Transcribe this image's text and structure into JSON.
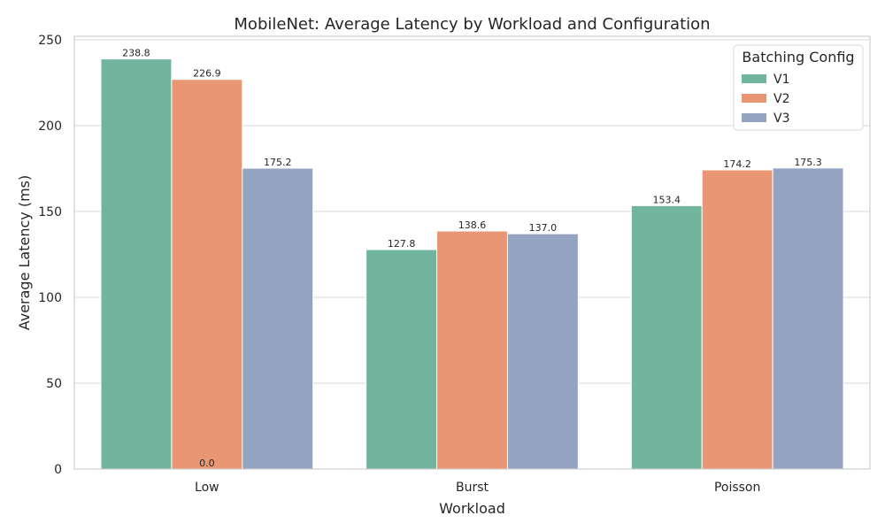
{
  "chart_data": {
    "type": "bar",
    "title": "MobileNet: Average Latency by Workload and Configuration",
    "xlabel": "Workload",
    "ylabel": "Average Latency (ms)",
    "categories": [
      "Low",
      "Burst",
      "Poisson"
    ],
    "series": [
      {
        "name": "V1",
        "values": [
          238.8,
          127.8,
          153.4
        ],
        "color": "#72b59f"
      },
      {
        "name": "V2",
        "values": [
          226.9,
          138.6,
          174.2
        ],
        "color": "#e89673"
      },
      {
        "name": "V3",
        "values": [
          175.2,
          137.0,
          175.3
        ],
        "color": "#95a3c3"
      }
    ],
    "extra_annotation": {
      "text": "0.0",
      "category": "Low",
      "value": 0
    },
    "ylim": [
      0,
      252
    ],
    "yticks": [
      0,
      50,
      100,
      150,
      200,
      250
    ],
    "grid": true,
    "legend": {
      "title": "Batching Config",
      "position": "top-right"
    },
    "value_format": "0.0"
  }
}
